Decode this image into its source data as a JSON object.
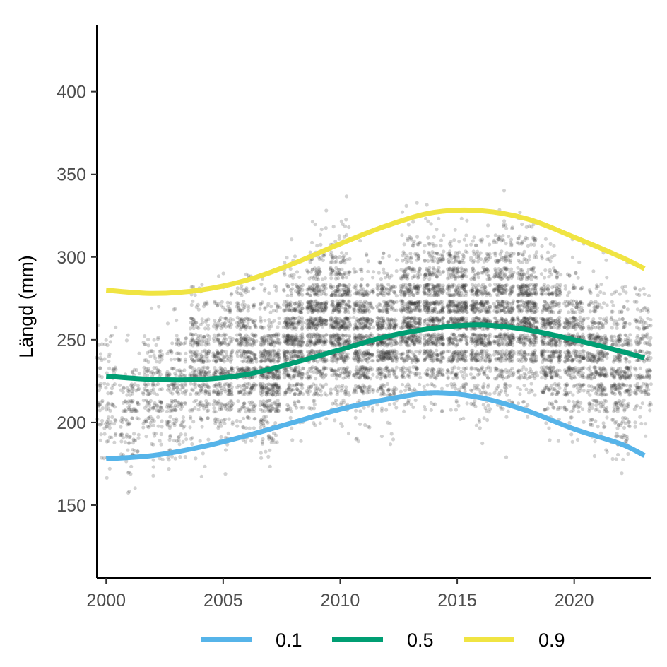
{
  "chart_data": {
    "type": "scatter",
    "title": "",
    "xlabel": "",
    "ylabel": "Längd (mm)",
    "xlim": [
      1999.6,
      2023.3
    ],
    "ylim": [
      106,
      440
    ],
    "xticks": [
      2000,
      2005,
      2010,
      2015,
      2020
    ],
    "yticks": [
      150,
      200,
      250,
      300,
      350,
      400
    ],
    "grid": false,
    "legend_position": "bottom",
    "point_color": "#333333",
    "point_opacity": 0.22,
    "scatter_description": "jittered individual length measurements per year, dense band roughly 150–400 mm",
    "scatter_density": [
      {
        "year": 2000,
        "center": 215,
        "spread": 55,
        "count": 110
      },
      {
        "year": 2001,
        "center": 205,
        "spread": 50,
        "count": 120
      },
      {
        "year": 2002,
        "center": 215,
        "spread": 50,
        "count": 150
      },
      {
        "year": 2003,
        "center": 220,
        "spread": 50,
        "count": 170
      },
      {
        "year": 2004,
        "center": 235,
        "spread": 55,
        "count": 260
      },
      {
        "year": 2005,
        "center": 235,
        "spread": 55,
        "count": 300
      },
      {
        "year": 2006,
        "center": 240,
        "spread": 55,
        "count": 340
      },
      {
        "year": 2007,
        "center": 230,
        "spread": 55,
        "count": 420
      },
      {
        "year": 2008,
        "center": 250,
        "spread": 55,
        "count": 430
      },
      {
        "year": 2009,
        "center": 260,
        "spread": 60,
        "count": 470
      },
      {
        "year": 2010,
        "center": 260,
        "spread": 60,
        "count": 500
      },
      {
        "year": 2011,
        "center": 250,
        "spread": 55,
        "count": 420
      },
      {
        "year": 2012,
        "center": 250,
        "spread": 55,
        "count": 430
      },
      {
        "year": 2013,
        "center": 265,
        "spread": 60,
        "count": 470
      },
      {
        "year": 2014,
        "center": 265,
        "spread": 60,
        "count": 490
      },
      {
        "year": 2015,
        "center": 265,
        "spread": 60,
        "count": 500
      },
      {
        "year": 2016,
        "center": 260,
        "spread": 60,
        "count": 470
      },
      {
        "year": 2017,
        "center": 265,
        "spread": 65,
        "count": 480
      },
      {
        "year": 2018,
        "center": 265,
        "spread": 60,
        "count": 470
      },
      {
        "year": 2019,
        "center": 255,
        "spread": 60,
        "count": 420
      },
      {
        "year": 2020,
        "center": 245,
        "spread": 55,
        "count": 360
      },
      {
        "year": 2021,
        "center": 240,
        "spread": 55,
        "count": 320
      },
      {
        "year": 2022,
        "center": 230,
        "spread": 55,
        "count": 300
      },
      {
        "year": 2023,
        "center": 240,
        "spread": 55,
        "count": 200
      }
    ],
    "series": [
      {
        "name": "0.1",
        "color": "#56B4E9",
        "x": [
          2000,
          2002,
          2004,
          2006,
          2008,
          2010,
          2012,
          2014,
          2016,
          2018,
          2020,
          2022,
          2023
        ],
        "values": [
          178,
          180,
          185,
          192,
          200,
          208,
          214,
          218,
          215,
          207,
          196,
          187,
          180
        ]
      },
      {
        "name": "0.5",
        "color": "#009E73",
        "x": [
          2000,
          2002,
          2004,
          2006,
          2008,
          2010,
          2012,
          2014,
          2016,
          2018,
          2020,
          2022,
          2023
        ],
        "values": [
          228,
          226,
          226,
          229,
          236,
          244,
          252,
          257,
          259,
          256,
          250,
          243,
          239
        ]
      },
      {
        "name": "0.9",
        "color": "#F0E442",
        "x": [
          2000,
          2002,
          2004,
          2006,
          2008,
          2010,
          2012,
          2014,
          2016,
          2018,
          2020,
          2022,
          2023
        ],
        "values": [
          280,
          278,
          280,
          286,
          296,
          308,
          319,
          327,
          328,
          323,
          312,
          300,
          293
        ]
      }
    ]
  }
}
